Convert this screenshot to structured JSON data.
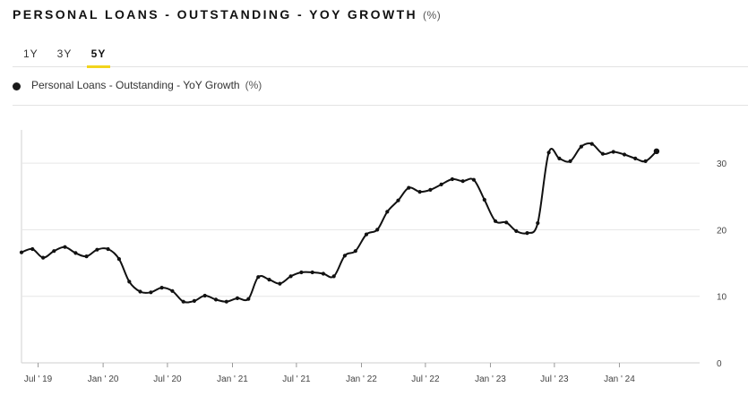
{
  "header": {
    "title": "PERSONAL LOANS - OUTSTANDING - YOY GROWTH",
    "unit": "(%)"
  },
  "tabs": [
    {
      "label": "1Y",
      "active": false
    },
    {
      "label": "3Y",
      "active": false
    },
    {
      "label": "5Y",
      "active": true
    }
  ],
  "legend": {
    "label": "Personal Loans - Outstanding - YoY Growth",
    "unit": "(%)"
  },
  "colors": {
    "series": "#111111",
    "accent": "#f2d41c",
    "grid": "#e6e6e6"
  },
  "chart_data": {
    "type": "line",
    "title": "PERSONAL LOANS - OUTSTANDING - YOY GROWTH",
    "ylabel": "",
    "xlabel": "",
    "ylim": [
      0,
      35
    ],
    "xlim": [
      "2019-05-15",
      "2024-08-15"
    ],
    "grid": true,
    "y_axis_position": "right",
    "yticks": [
      0,
      10,
      20,
      30
    ],
    "xticks": [
      {
        "date": "2019-07-01",
        "label": "Jul ' 19"
      },
      {
        "date": "2020-01-01",
        "label": "Jan ' 20"
      },
      {
        "date": "2020-07-01",
        "label": "Jul ' 20"
      },
      {
        "date": "2021-01-01",
        "label": "Jan ' 21"
      },
      {
        "date": "2021-07-01",
        "label": "Jul ' 21"
      },
      {
        "date": "2022-01-01",
        "label": "Jan ' 22"
      },
      {
        "date": "2022-07-01",
        "label": "Jul ' 22"
      },
      {
        "date": "2023-01-01",
        "label": "Jan ' 23"
      },
      {
        "date": "2023-07-01",
        "label": "Jul ' 23"
      },
      {
        "date": "2024-01-01",
        "label": "Jan ' 24"
      }
    ],
    "series": [
      {
        "name": "Personal Loans - Outstanding - YoY Growth",
        "points": [
          [
            "2019-05-15",
            16.6
          ],
          [
            "2019-06-15",
            17.1
          ],
          [
            "2019-07-15",
            15.8
          ],
          [
            "2019-08-15",
            16.8
          ],
          [
            "2019-09-15",
            17.4
          ],
          [
            "2019-10-15",
            16.5
          ],
          [
            "2019-11-15",
            16.0
          ],
          [
            "2019-12-15",
            17.0
          ],
          [
            "2020-01-15",
            17.1
          ],
          [
            "2020-02-15",
            15.6
          ],
          [
            "2020-03-15",
            12.2
          ],
          [
            "2020-04-15",
            10.7
          ],
          [
            "2020-05-15",
            10.6
          ],
          [
            "2020-06-15",
            11.3
          ],
          [
            "2020-07-15",
            10.8
          ],
          [
            "2020-08-15",
            9.2
          ],
          [
            "2020-09-15",
            9.3
          ],
          [
            "2020-10-15",
            10.1
          ],
          [
            "2020-11-15",
            9.5
          ],
          [
            "2020-12-15",
            9.2
          ],
          [
            "2021-01-15",
            9.7
          ],
          [
            "2021-02-15",
            9.6
          ],
          [
            "2021-03-15",
            12.9
          ],
          [
            "2021-04-15",
            12.5
          ],
          [
            "2021-05-15",
            11.9
          ],
          [
            "2021-06-15",
            13.0
          ],
          [
            "2021-07-15",
            13.6
          ],
          [
            "2021-08-15",
            13.6
          ],
          [
            "2021-09-15",
            13.4
          ],
          [
            "2021-10-15",
            13.0
          ],
          [
            "2021-11-15",
            16.1
          ],
          [
            "2021-12-15",
            16.8
          ],
          [
            "2022-01-15",
            19.3
          ],
          [
            "2022-02-15",
            20.0
          ],
          [
            "2022-03-15",
            22.7
          ],
          [
            "2022-04-15",
            24.4
          ],
          [
            "2022-05-15",
            26.3
          ],
          [
            "2022-06-15",
            25.7
          ],
          [
            "2022-07-15",
            26.0
          ],
          [
            "2022-08-15",
            26.8
          ],
          [
            "2022-09-15",
            27.6
          ],
          [
            "2022-10-15",
            27.3
          ],
          [
            "2022-11-15",
            27.5
          ],
          [
            "2022-12-15",
            24.5
          ],
          [
            "2023-01-15",
            21.3
          ],
          [
            "2023-02-15",
            21.1
          ],
          [
            "2023-03-15",
            19.8
          ],
          [
            "2023-04-15",
            19.5
          ],
          [
            "2023-05-15",
            21.0
          ],
          [
            "2023-06-15",
            31.6
          ],
          [
            "2023-07-15",
            30.7
          ],
          [
            "2023-08-15",
            30.3
          ],
          [
            "2023-09-15",
            32.5
          ],
          [
            "2023-10-15",
            32.9
          ],
          [
            "2023-11-15",
            31.4
          ],
          [
            "2023-12-15",
            31.7
          ],
          [
            "2024-01-15",
            31.3
          ],
          [
            "2024-02-15",
            30.7
          ],
          [
            "2024-03-15",
            30.3
          ],
          [
            "2024-04-15",
            31.8
          ]
        ]
      }
    ]
  }
}
